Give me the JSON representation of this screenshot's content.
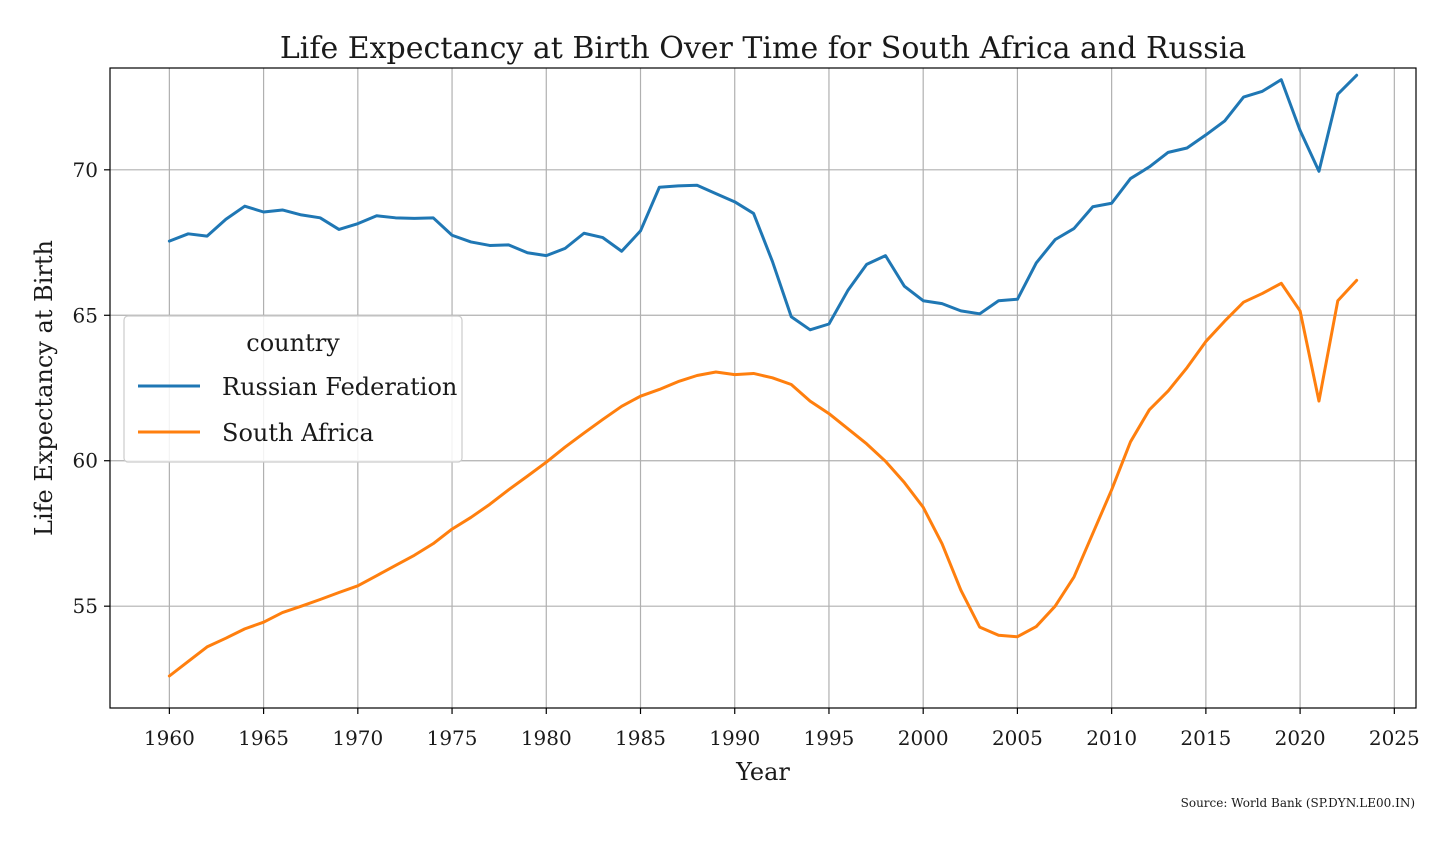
{
  "chart_data": {
    "type": "line",
    "title": "Life Expectancy at Birth Over Time for South Africa and Russia",
    "xlabel": "Year",
    "ylabel": "Life Expectancy at Birth",
    "xlim": [
      1956.85,
      2026.15
    ],
    "ylim": [
      51.5,
      73.5
    ],
    "xticks": [
      1960,
      1965,
      1970,
      1975,
      1980,
      1985,
      1990,
      1995,
      2000,
      2005,
      2010,
      2015,
      2020,
      2025
    ],
    "yticks": [
      55,
      60,
      65,
      70
    ],
    "grid": true,
    "legend": {
      "title": "country",
      "placement": "center-left"
    },
    "source": "Source: World Bank (SP.DYN.LE00.IN)",
    "x": [
      1960,
      1961,
      1962,
      1963,
      1964,
      1965,
      1966,
      1967,
      1968,
      1969,
      1970,
      1971,
      1972,
      1973,
      1974,
      1975,
      1976,
      1977,
      1978,
      1979,
      1980,
      1981,
      1982,
      1983,
      1984,
      1985,
      1986,
      1987,
      1988,
      1989,
      1990,
      1991,
      1992,
      1993,
      1994,
      1995,
      1996,
      1997,
      1998,
      1999,
      2000,
      2001,
      2002,
      2003,
      2004,
      2005,
      2006,
      2007,
      2008,
      2009,
      2010,
      2011,
      2012,
      2013,
      2014,
      2015,
      2016,
      2017,
      2018,
      2019,
      2020,
      2021,
      2022,
      2023
    ],
    "series": [
      {
        "name": "Russian Federation",
        "color": "#1f77b4",
        "values": [
          67.55,
          67.8,
          67.72,
          68.3,
          68.75,
          68.55,
          68.62,
          68.45,
          68.35,
          67.95,
          68.15,
          68.42,
          68.35,
          68.33,
          68.35,
          67.75,
          67.52,
          67.4,
          67.42,
          67.15,
          67.05,
          67.3,
          67.82,
          67.67,
          67.2,
          67.9,
          69.4,
          69.45,
          69.47,
          69.18,
          68.9,
          68.5,
          66.85,
          64.95,
          64.5,
          64.7,
          65.85,
          66.75,
          67.05,
          66.0,
          65.5,
          65.4,
          65.15,
          65.05,
          65.5,
          65.55,
          66.8,
          67.6,
          67.98,
          68.73,
          68.85,
          69.7,
          70.1,
          70.6,
          70.75,
          71.2,
          71.68,
          72.5,
          72.7,
          73.1,
          71.35,
          69.95,
          72.6,
          73.25
        ]
      },
      {
        "name": "South Africa",
        "color": "#ff7f0e",
        "values": [
          52.6,
          53.1,
          53.6,
          53.9,
          54.22,
          54.45,
          54.78,
          55.0,
          55.23,
          55.47,
          55.7,
          56.05,
          56.4,
          56.75,
          57.15,
          57.65,
          58.05,
          58.5,
          59.0,
          59.47,
          59.95,
          60.47,
          60.95,
          61.42,
          61.87,
          62.22,
          62.45,
          62.72,
          62.93,
          63.05,
          62.96,
          63.0,
          62.85,
          62.62,
          62.05,
          61.62,
          61.1,
          60.58,
          59.98,
          59.25,
          58.4,
          57.15,
          55.55,
          54.28,
          54.0,
          53.95,
          54.3,
          55.0,
          56.0,
          57.5,
          59.0,
          60.65,
          61.75,
          62.4,
          63.2,
          64.1,
          64.8,
          65.45,
          65.75,
          66.1,
          65.15,
          62.05,
          65.5,
          66.2
        ]
      }
    ]
  }
}
